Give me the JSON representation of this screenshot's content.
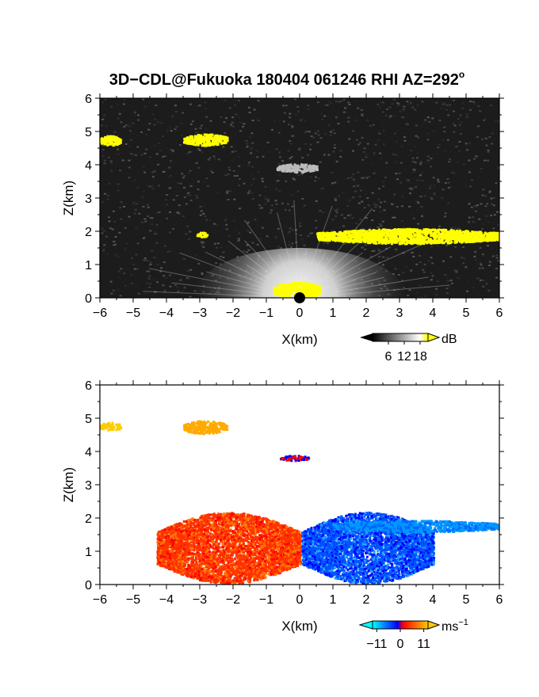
{
  "title": "3D−CDL@Fukuoka 180404 061246 RHI AZ=292",
  "title_superscript": "o",
  "chart_data": [
    {
      "type": "heatmap",
      "panel": "top",
      "quantity": "backscatter intensity",
      "xlabel": "X(km)",
      "ylabel": "Z(km)",
      "xlim": [
        -6,
        6
      ],
      "ylim": [
        0,
        6
      ],
      "xticks": [
        "−6",
        "−5",
        "−4",
        "−3",
        "−2",
        "−1",
        "0",
        "1",
        "2",
        "3",
        "4",
        "5",
        "6"
      ],
      "yticks": [
        "0",
        "1",
        "2",
        "3",
        "4",
        "5",
        "6"
      ],
      "colorbar": {
        "unit": "dB",
        "ticks": [
          "6",
          "12",
          "18"
        ],
        "tick_values": [
          6,
          12,
          18
        ],
        "range": [
          0,
          21
        ],
        "colors": [
          "#000000",
          "#ffffff",
          "#ffff00"
        ]
      },
      "features": [
        {
          "name": "cloud",
          "x": [
            -6.0,
            -5.4
          ],
          "z": [
            4.6,
            4.9
          ],
          "color": "#ffff00"
        },
        {
          "name": "cloud",
          "x": [
            -3.5,
            -2.2
          ],
          "z": [
            4.6,
            4.95
          ],
          "color": "#ffff00"
        },
        {
          "name": "weak layer",
          "x": [
            -0.7,
            0.5
          ],
          "z": [
            3.8,
            4.05
          ],
          "color": "#bbbbbb"
        },
        {
          "name": "cloud",
          "x": [
            -3.1,
            -2.8
          ],
          "z": [
            1.85,
            2.0
          ],
          "color": "#ffff00"
        },
        {
          "name": "cloud",
          "x": [
            0.5,
            6.0
          ],
          "z": [
            1.65,
            2.1
          ],
          "color": "#ffff00"
        },
        {
          "name": "near-field",
          "x": [
            -0.8,
            0.6
          ],
          "z": [
            0.0,
            0.5
          ],
          "color": "#ffff00"
        }
      ]
    },
    {
      "type": "heatmap",
      "panel": "bottom",
      "quantity": "Doppler velocity",
      "xlabel": "X(km)",
      "ylabel": "Z(km)",
      "xlim": [
        -6,
        6
      ],
      "ylim": [
        0,
        6
      ],
      "xticks": [
        "−6",
        "−5",
        "−4",
        "−3",
        "−2",
        "−1",
        "0",
        "1",
        "2",
        "3",
        "4",
        "5",
        "6"
      ],
      "yticks": [
        "0",
        "1",
        "2",
        "3",
        "4",
        "5",
        "6"
      ],
      "colorbar": {
        "unit": "ms",
        "unit_exponent": "−1",
        "ticks": [
          "−11",
          "0",
          "11"
        ],
        "tick_values": [
          -11,
          0,
          11
        ],
        "range": [
          -13,
          13
        ],
        "colors": [
          "#00ffff",
          "#0000ff",
          "#ff0000",
          "#ffcc00"
        ]
      },
      "features": [
        {
          "name": "cloud",
          "x": [
            -6.0,
            -5.4
          ],
          "z": [
            4.65,
            4.9
          ],
          "velocity": 11,
          "color": "#ffcc00"
        },
        {
          "name": "cloud",
          "x": [
            -3.5,
            -2.2
          ],
          "z": [
            4.55,
            4.95
          ],
          "velocity": 10,
          "color": "#ffaa00"
        },
        {
          "name": "small patch",
          "x": [
            -0.6,
            0.25
          ],
          "z": [
            3.75,
            3.9
          ],
          "velocity": 2,
          "color": "#ff0000"
        },
        {
          "name": "westward flow",
          "x": [
            -4.3,
            0.0
          ],
          "z": [
            0.05,
            2.2
          ],
          "velocity": 6,
          "color": "#ff4400"
        },
        {
          "name": "eastward flow",
          "x": [
            0.05,
            4.0
          ],
          "z": [
            0.05,
            2.2
          ],
          "velocity": -6,
          "color": "#0044ff"
        },
        {
          "name": "upper layer",
          "x": [
            1.0,
            6.0
          ],
          "z": [
            1.6,
            1.95
          ],
          "velocity": -8,
          "color": "#0099ff"
        }
      ]
    }
  ]
}
